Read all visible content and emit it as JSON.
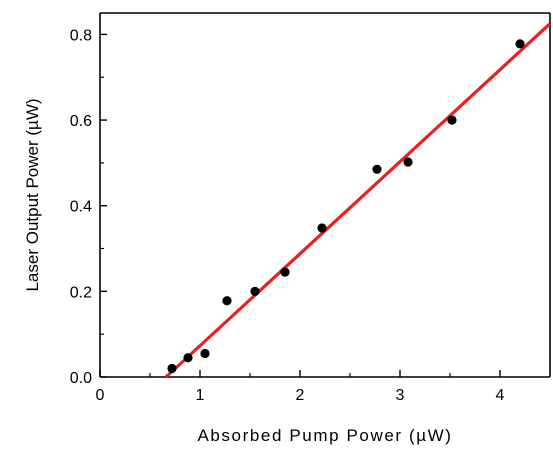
{
  "chart_data": {
    "type": "scatter",
    "title": "",
    "xlabel": "Absorbed Pump Power (µW)",
    "ylabel": "Laser Output Power (µW)",
    "xlim": [
      0,
      4.5
    ],
    "ylim": [
      0,
      0.85
    ],
    "xticks": [
      0,
      1,
      2,
      3,
      4
    ],
    "yticks": [
      0.0,
      0.2,
      0.4,
      0.6,
      0.8
    ],
    "xtick_labels": [
      "0",
      "1",
      "2",
      "3",
      "4"
    ],
    "ytick_labels": [
      "0.0",
      "0.2",
      "0.4",
      "0.6",
      "0.8"
    ],
    "grid": false,
    "legend": "none",
    "series": [
      {
        "kind": "scatter",
        "color": "#000000",
        "x": [
          0.72,
          0.88,
          1.05,
          1.27,
          1.55,
          1.85,
          2.22,
          2.77,
          3.08,
          3.52,
          4.2
        ],
        "y": [
          0.02,
          0.045,
          0.055,
          0.178,
          0.2,
          0.245,
          0.348,
          0.485,
          0.502,
          0.6,
          0.778
        ]
      },
      {
        "kind": "fit-line",
        "color": "#e8201e",
        "x": [
          0.66,
          4.5
        ],
        "y": [
          0.0,
          0.825
        ]
      }
    ]
  }
}
